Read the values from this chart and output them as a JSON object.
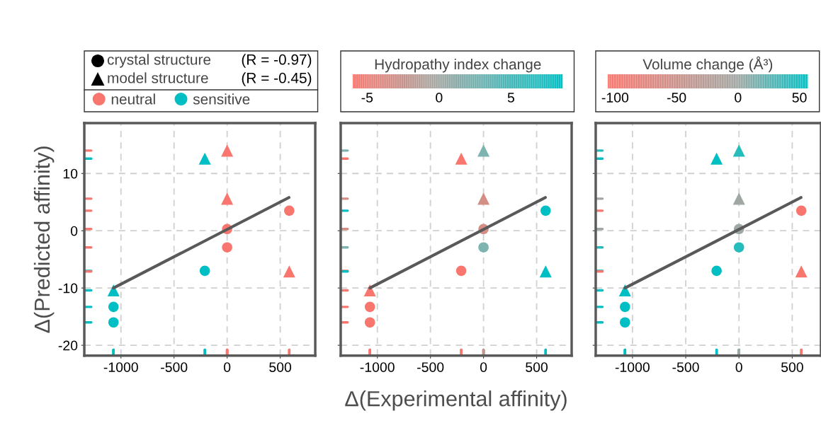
{
  "chart_data": [
    {
      "type": "scatter",
      "ylabel": "Δ(Predicted affinity)",
      "xlim": [
        -1345,
        830
      ],
      "ylim": [
        -21.8,
        18.8
      ],
      "xticks": [
        -1000,
        -500,
        0,
        500
      ],
      "yticks": [
        -20,
        -10,
        0,
        10
      ],
      "grid": true,
      "legend": "top",
      "annotations": [
        "crystal structure",
        "(R = -0.97)",
        "model structure",
        "(R = -0.45)"
      ],
      "series": [
        {
          "name": "neutral",
          "marker": "circle",
          "color": "#f8766d",
          "x": [
            585,
            0,
            0
          ],
          "values": [
            3.5,
            0.3,
            -2.9
          ]
        },
        {
          "name": "sensitive",
          "marker": "circle",
          "color": "#00bfc4",
          "x": [
            -210,
            -1070,
            -1070
          ],
          "values": [
            -7.0,
            -13.3,
            -16.0
          ]
        },
        {
          "marker": "triangle",
          "color": "#f8766d",
          "x": [
            0,
            0,
            585
          ],
          "values": [
            14.0,
            5.6,
            -7.1
          ]
        },
        {
          "marker": "triangle",
          "color": "#00bfc4",
          "x": [
            -210,
            -1070
          ],
          "values": [
            12.6,
            -10.4
          ]
        },
        {
          "type": "line",
          "color": "#595959",
          "x": [
            -1070,
            582
          ],
          "values": [
            -10.0,
            5.8
          ]
        }
      ]
    },
    {
      "type": "scatter",
      "xlabel": "Δ(Experimental affinity)",
      "clabel": "Hydropathy index change",
      "clim": [
        -6.0,
        8.6
      ],
      "cticks": [
        -5,
        0,
        5
      ],
      "xlim": [
        -1345,
        830
      ],
      "ylim": [
        -21.8,
        18.8
      ],
      "xticks": [
        -1000,
        -500,
        0,
        500
      ],
      "yticks": [
        -20,
        -10,
        0,
        10
      ],
      "tick_labels": "x",
      "grid": true,
      "series": [
        {
          "marker": "circle",
          "x": [
            585,
            0,
            0,
            -210,
            -1070,
            -1070
          ],
          "values": [
            3.5,
            0.3,
            -2.9,
            -7.0,
            -13.3,
            -16.0
          ],
          "colors": [
            "#00bfc4",
            "#d38f85",
            "#7db4b0",
            "#f8766d",
            "#f8766d",
            "#f8766d"
          ]
        },
        {
          "marker": "triangle",
          "x": [
            0,
            -210,
            0,
            585,
            -1070
          ],
          "values": [
            14.0,
            12.6,
            5.6,
            -7.1,
            -10.4
          ],
          "colors": [
            "#7db4b0",
            "#f8766d",
            "#d38f85",
            "#00bfc4",
            "#f8766d"
          ]
        },
        {
          "type": "line",
          "color": "#595959",
          "x": [
            -1070,
            582
          ],
          "values": [
            -10.0,
            5.8
          ]
        }
      ]
    },
    {
      "type": "scatter",
      "clabel": "Volume change (Å³)",
      "clim": [
        -106,
        57
      ],
      "cticks": [
        -100,
        -50,
        0,
        50
      ],
      "xlim": [
        -1345,
        770
      ],
      "ylim": [
        -21.8,
        18.8
      ],
      "xticks": [
        -1000,
        -500,
        0,
        500
      ],
      "yticks": [
        -20,
        -10,
        0,
        10
      ],
      "tick_labels": "x",
      "grid": true,
      "series": [
        {
          "marker": "circle",
          "x": [
            585,
            0,
            0,
            -210,
            -1070,
            -1070
          ],
          "values": [
            3.5,
            0.3,
            -2.9,
            -7.0,
            -13.3,
            -16.0
          ],
          "colors": [
            "#f8766d",
            "#a0a8a4",
            "#26bcbc",
            "#00bfc4",
            "#00bfc4",
            "#00bfc4"
          ]
        },
        {
          "marker": "triangle",
          "x": [
            0,
            -210,
            0,
            585,
            -1070
          ],
          "values": [
            14.0,
            12.6,
            5.6,
            -7.1,
            -10.4
          ],
          "colors": [
            "#26bcbc",
            "#00bfc4",
            "#a0a8a4",
            "#f8766d",
            "#00bfc4"
          ]
        },
        {
          "type": "line",
          "color": "#595959",
          "x": [
            -1070,
            582
          ],
          "values": [
            -10.0,
            5.8
          ]
        }
      ]
    }
  ]
}
